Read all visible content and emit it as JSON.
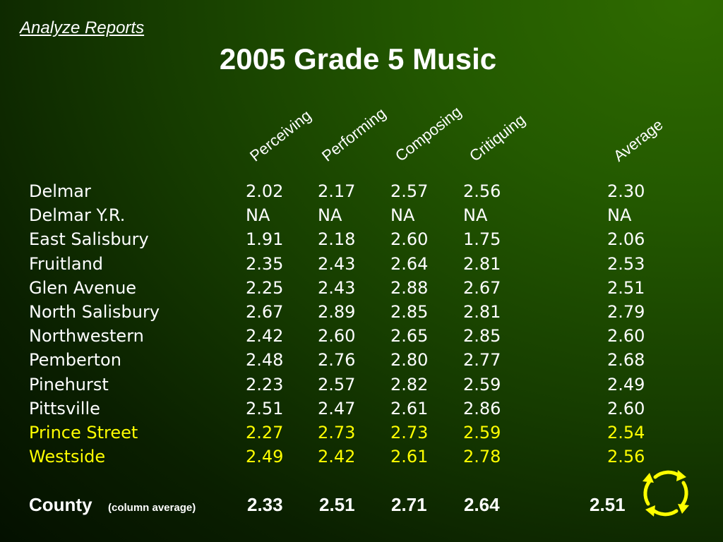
{
  "nav": {
    "link": "Analyze Reports"
  },
  "title": "2005 Grade 5 Music",
  "columns": [
    "Perceiving",
    "Performing",
    "Composing",
    "Critiquing",
    "Average"
  ],
  "rows": [
    {
      "name": "Delmar",
      "values": [
        "2.02",
        "2.17",
        "2.57",
        "2.56",
        "2.30"
      ],
      "highlight": false
    },
    {
      "name": "Delmar Y.R.",
      "values": [
        "NA",
        "NA",
        "NA",
        "NA",
        "NA"
      ],
      "highlight": false
    },
    {
      "name": "East Salisbury",
      "values": [
        "1.91",
        "2.18",
        "2.60",
        "1.75",
        "2.06"
      ],
      "highlight": false
    },
    {
      "name": "Fruitland",
      "values": [
        "2.35",
        "2.43",
        "2.64",
        "2.81",
        "2.53"
      ],
      "highlight": false
    },
    {
      "name": "Glen Avenue",
      "values": [
        "2.25",
        "2.43",
        "2.88",
        "2.67",
        "2.51"
      ],
      "highlight": false
    },
    {
      "name": "North Salisbury",
      "values": [
        "2.67",
        "2.89",
        "2.85",
        "2.81",
        "2.79"
      ],
      "highlight": false
    },
    {
      "name": "Northwestern",
      "values": [
        "2.42",
        "2.60",
        "2.65",
        "2.85",
        "2.60"
      ],
      "highlight": false
    },
    {
      "name": "Pemberton",
      "values": [
        "2.48",
        "2.76",
        "2.80",
        "2.77",
        "2.68"
      ],
      "highlight": false
    },
    {
      "name": "Pinehurst",
      "values": [
        "2.23",
        "2.57",
        "2.82",
        "2.59",
        "2.49"
      ],
      "highlight": false
    },
    {
      "name": "Pittsville",
      "values": [
        "2.51",
        "2.47",
        "2.61",
        "2.86",
        "2.60"
      ],
      "highlight": false
    },
    {
      "name": "Prince Street",
      "values": [
        "2.27",
        "2.73",
        "2.73",
        "2.59",
        "2.54"
      ],
      "highlight": true
    },
    {
      "name": "Westside",
      "values": [
        "2.49",
        "2.42",
        "2.61",
        "2.78",
        "2.56"
      ],
      "highlight": true
    }
  ],
  "county": {
    "label": "County",
    "note": "(column average)",
    "values": [
      "2.33",
      "2.51",
      "2.71",
      "2.64",
      "2.51"
    ]
  },
  "colors": {
    "highlight": "#ffff00",
    "text": "#ffffff",
    "icon": "#ffff00"
  },
  "icons": {
    "refresh": "refresh-cycle-icon"
  }
}
